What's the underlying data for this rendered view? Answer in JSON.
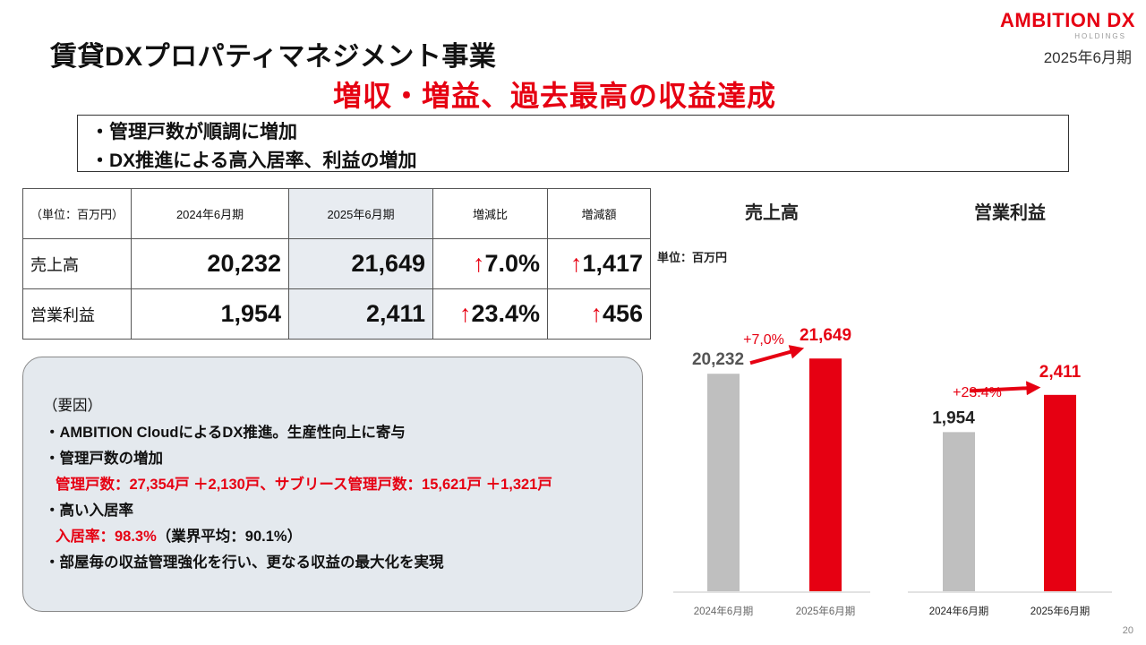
{
  "header": {
    "logo_main": "AMBITION DX",
    "logo_sub": "HOLDINGS",
    "fiscal_period": "2025年6月期",
    "title": "賃貸DXプロパティマネジメント事業",
    "headline": "増収・増益、過去最高の収益達成"
  },
  "points": [
    "・管理戸数が順調に増加",
    "・DX推進による高入居率、利益の増加"
  ],
  "table": {
    "headers": [
      "（単位：百万円）",
      "2024年6月期",
      "2025年6月期",
      "増減比",
      "増減額"
    ],
    "arrow": "↑",
    "rows": [
      {
        "label": "売上高",
        "prev": "20,232",
        "curr": "21,649",
        "ratio": "7.0%",
        "diff": "1,417"
      },
      {
        "label": "営業利益",
        "prev": "1,954",
        "curr": "2,411",
        "ratio": "23.4%",
        "diff": "456"
      }
    ]
  },
  "factors": {
    "heading": "（要因）",
    "line1": "・AMBITION CloudによるDX推進。生産性向上に寄与",
    "line2": "・管理戸数の増加",
    "line3": "管理戸数：27,354戸 ＋2,130戸、サブリース管理戸数：15,621戸 ＋1,321戸",
    "line4": "・高い入居率",
    "line5_red": "入居率：98.3%",
    "line5_black": "（業界平均：90.1%）",
    "line6": "・部屋毎の収益管理強化を行い、更なる収益の最大化を実現"
  },
  "chart_data": [
    {
      "type": "bar",
      "title": "売上高",
      "unit_label": "単位：百万円",
      "categories": [
        "2024年6月期",
        "2025年6月期"
      ],
      "values": [
        20232,
        21649
      ],
      "value_labels": [
        "20,232",
        "21,649"
      ],
      "change_label": "+7,0%",
      "colors": [
        "#bfbfbf",
        "#e60012"
      ],
      "ylim": [
        0,
        25000
      ]
    },
    {
      "type": "bar",
      "title": "営業利益",
      "categories": [
        "2024年6月期",
        "2025年6月期"
      ],
      "values": [
        1954,
        2411
      ],
      "value_labels": [
        "1,954",
        "2,411"
      ],
      "change_label": "+23.4%",
      "colors": [
        "#bfbfbf",
        "#e60012"
      ],
      "ylim": [
        0,
        3300
      ]
    }
  ],
  "page_number": "20",
  "colors": {
    "accent": "#e60012",
    "bar_prev": "#bfbfbf",
    "shade": "#e8ecf1",
    "panel": "#e4e9ee"
  }
}
